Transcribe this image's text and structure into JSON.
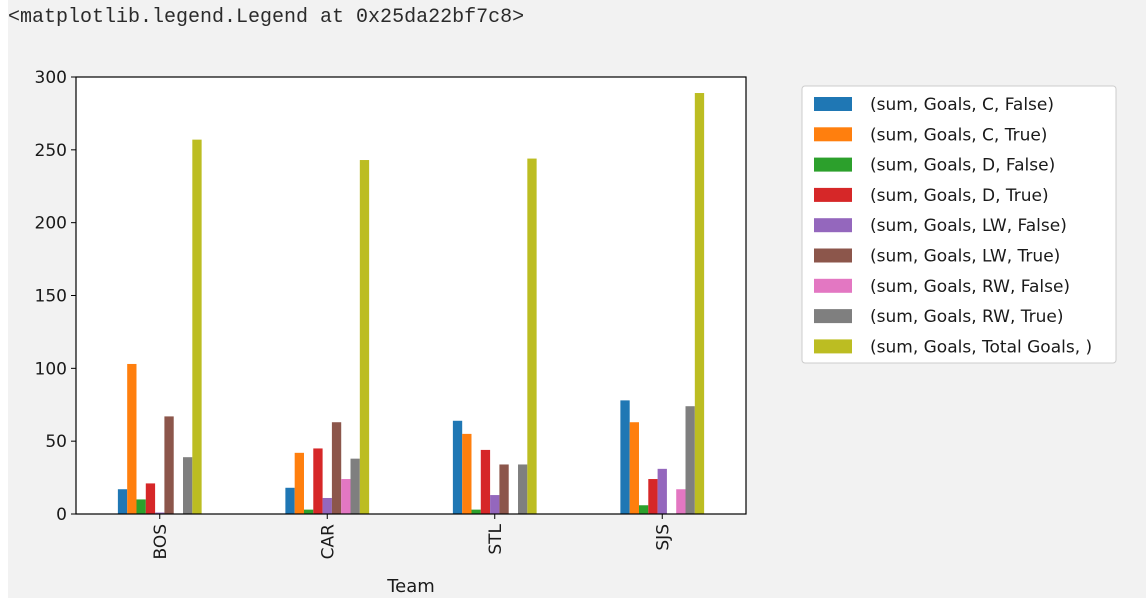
{
  "output": {
    "repr_text": "<matplotlib.legend.Legend at 0x25da22bf7c8>"
  },
  "chart_data": {
    "type": "bar",
    "xlabel": "Team",
    "ylabel": "",
    "categories": [
      "BOS",
      "CAR",
      "STL",
      "SJS"
    ],
    "ylim": [
      0,
      300
    ],
    "yticks": [
      0,
      50,
      100,
      150,
      200,
      250,
      300
    ],
    "grid": false,
    "legend_placement": "outside-right",
    "series": [
      {
        "name": "(sum, Goals, C, False)",
        "color": "#1f77b4",
        "values": [
          17,
          18,
          64,
          78
        ]
      },
      {
        "name": "(sum, Goals, C, True)",
        "color": "#ff7f0e",
        "values": [
          103,
          42,
          55,
          63
        ]
      },
      {
        "name": "(sum, Goals, D, False)",
        "color": "#2ca02c",
        "values": [
          10,
          3,
          3,
          6
        ]
      },
      {
        "name": "(sum, Goals, D, True)",
        "color": "#d62728",
        "values": [
          21,
          45,
          44,
          24
        ]
      },
      {
        "name": "(sum, Goals, LW, False)",
        "color": "#9467bd",
        "values": [
          1,
          11,
          13,
          31
        ]
      },
      {
        "name": "(sum, Goals, LW, True)",
        "color": "#8c564b",
        "values": [
          67,
          63,
          34,
          0
        ]
      },
      {
        "name": "(sum, Goals, RW, False)",
        "color": "#e377c2",
        "values": [
          0,
          24,
          0,
          17
        ]
      },
      {
        "name": "(sum, Goals, RW, True)",
        "color": "#7f7f7f",
        "values": [
          39,
          38,
          34,
          74
        ]
      },
      {
        "name": "(sum, Goals, Total Goals, )",
        "color": "#bcbd22",
        "values": [
          257,
          243,
          244,
          289
        ]
      }
    ]
  }
}
